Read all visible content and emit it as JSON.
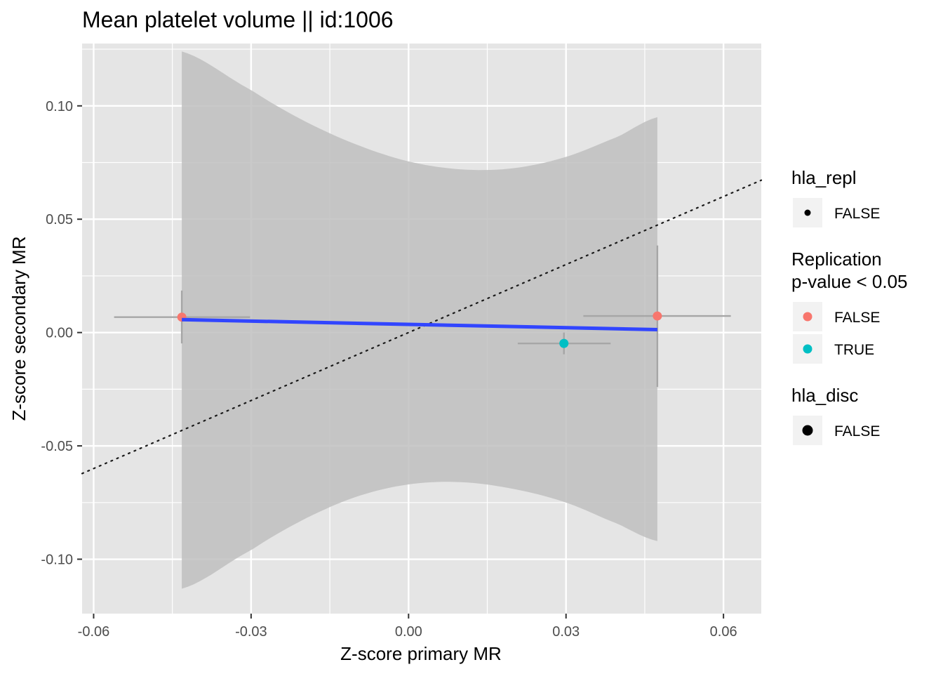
{
  "chart_data": {
    "type": "scatter",
    "title": "Mean platelet volume || id:1006",
    "xlabel": "Z-score primary MR",
    "ylabel": "Z-score secondary MR",
    "xlim": [
      -0.0622,
      0.0672
    ],
    "ylim": [
      -0.124,
      0.1275
    ],
    "x_ticks": [
      -0.06,
      -0.03,
      0.0,
      0.03,
      0.06
    ],
    "x_tick_labels": [
      "-0.06",
      "-0.03",
      "0.00",
      "0.03",
      "0.06"
    ],
    "y_ticks": [
      -0.1,
      -0.05,
      0.0,
      0.05,
      0.1
    ],
    "y_tick_labels": [
      "-0.10",
      "-0.05",
      "0.00",
      "0.05",
      "0.10"
    ],
    "grid": true,
    "colors": {
      "panel": "#e5e5e5",
      "grid": "#ffffff",
      "false": "#f8766d",
      "true": "#00bfc4",
      "regression": "#3145ff",
      "ribbon": "#bfbfbf",
      "errorbar": "#a6a6a6",
      "identity": "#1a1a1a"
    },
    "points": [
      {
        "x": -0.0432,
        "y": 0.0068,
        "xmin": -0.0561,
        "xmax": -0.0302,
        "ymin": -0.0048,
        "ymax": 0.0185,
        "replication": "FALSE",
        "hla_repl": "FALSE",
        "hla_disc": "FALSE"
      },
      {
        "x": 0.0296,
        "y": -0.0048,
        "xmin": 0.0208,
        "xmax": 0.0385,
        "ymin": -0.0096,
        "ymax": 0.0,
        "replication": "TRUE",
        "hla_repl": "FALSE",
        "hla_disc": "FALSE"
      },
      {
        "x": 0.0474,
        "y": 0.0073,
        "xmin": 0.0333,
        "xmax": 0.0614,
        "ymin": -0.024,
        "ymax": 0.0384,
        "replication": "FALSE",
        "hla_repl": "FALSE",
        "hla_disc": "FALSE"
      }
    ],
    "regression_line": {
      "x": [
        -0.0432,
        0.0474
      ],
      "y": [
        0.0057,
        0.0013
      ]
    },
    "confidence_band": {
      "x": [
        -0.0432,
        -0.03,
        -0.02,
        -0.01,
        0.0,
        0.01,
        0.02,
        0.03,
        0.04,
        0.0474
      ],
      "upper": [
        0.124,
        0.107,
        0.0935,
        0.083,
        0.0755,
        0.072,
        0.0725,
        0.0775,
        0.0865,
        0.095
      ],
      "lower": [
        -0.113,
        -0.096,
        -0.0825,
        -0.0725,
        -0.067,
        -0.066,
        -0.069,
        -0.075,
        -0.0845,
        -0.092
      ]
    },
    "identity_line": {
      "slope": 1,
      "intercept": 0
    },
    "legends": [
      {
        "title": "hla_repl",
        "entries": [
          {
            "label": "FALSE",
            "shape": "dot-small",
            "color": "#000000"
          }
        ]
      },
      {
        "title": "Replication\np-value < 0.05",
        "entries": [
          {
            "label": "FALSE",
            "shape": "dot",
            "color": "#f8766d"
          },
          {
            "label": "TRUE",
            "shape": "dot",
            "color": "#00bfc4"
          }
        ]
      },
      {
        "title": "hla_disc",
        "entries": [
          {
            "label": "FALSE",
            "shape": "dot-large",
            "color": "#000000"
          }
        ]
      }
    ],
    "legend_position": "right"
  }
}
